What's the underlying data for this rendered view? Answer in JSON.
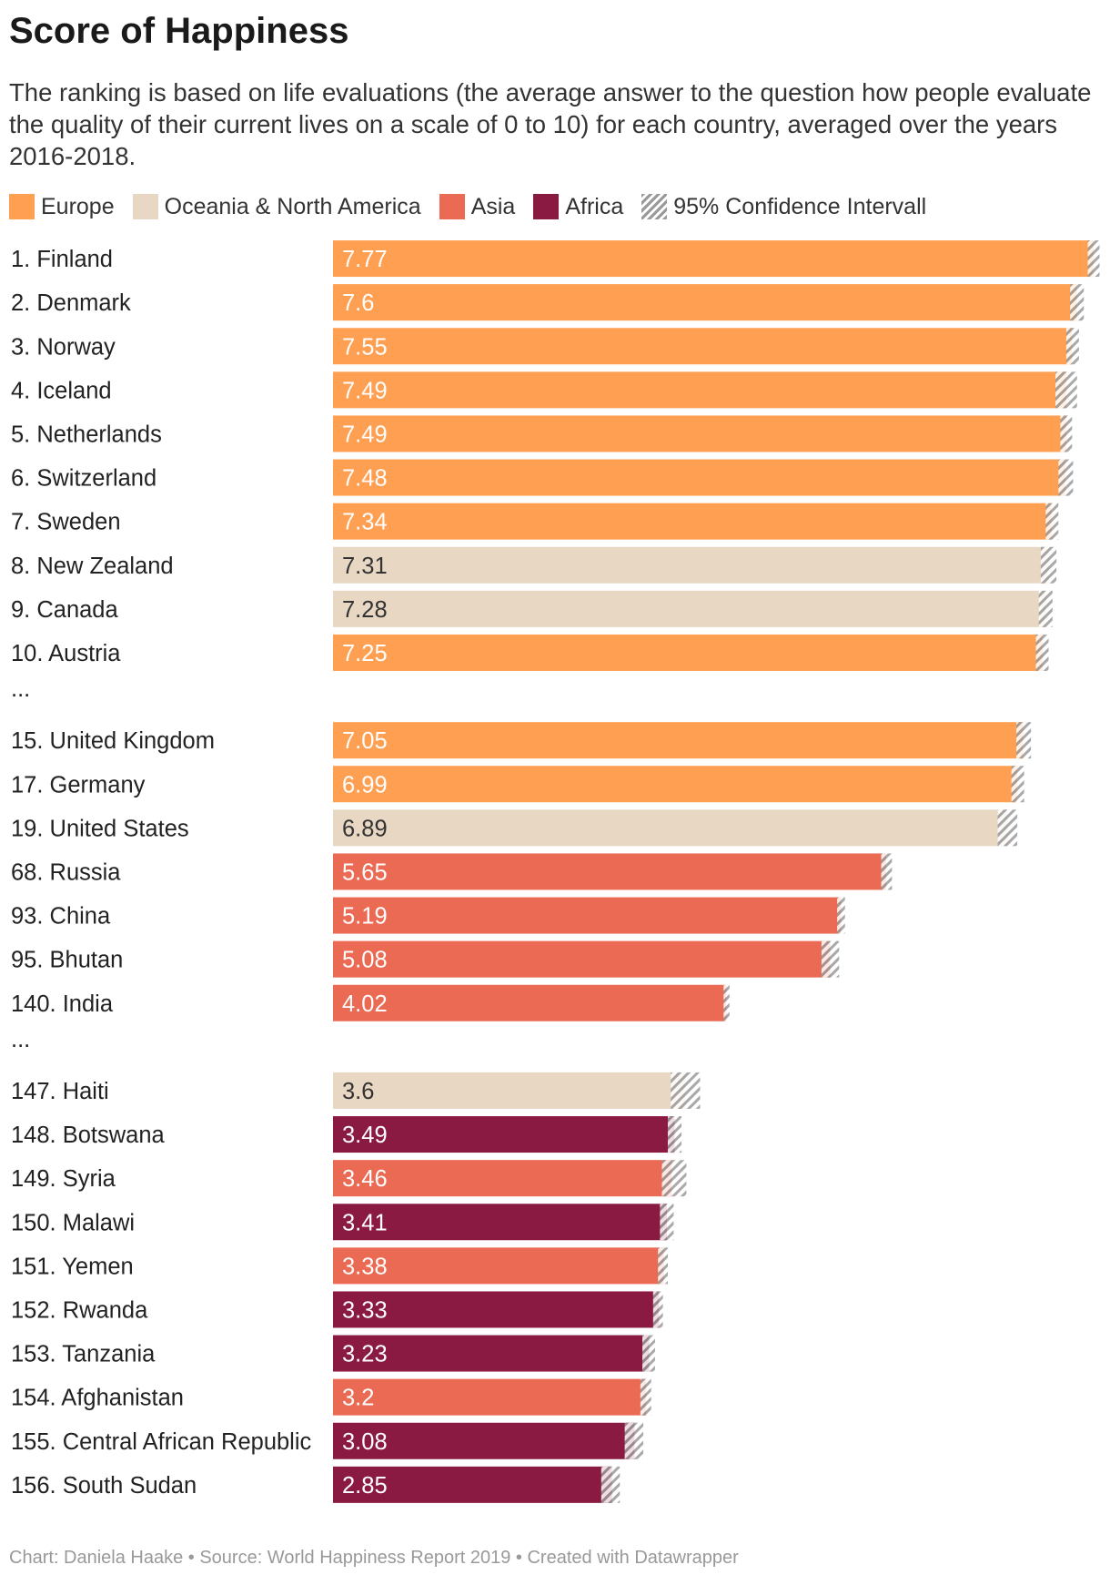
{
  "title": "Score of Happiness",
  "subtitle": "The ranking is based on life evaluations (the average answer to the question how people evaluate the quality of their current lives on a scale of 0 to 10) for each country, averaged over the years 2016-2018.",
  "legend": [
    {
      "name": "Europe",
      "color": "#fe9f51"
    },
    {
      "name": "Oceania & North America",
      "color": "#e8d7c2"
    },
    {
      "name": "Asia",
      "color": "#ea6a53"
    },
    {
      "name": "Africa",
      "color": "#8b1a43"
    },
    {
      "name": "95% Confidence Intervall",
      "pattern": "hatch"
    }
  ],
  "footer": "Chart: Daniela Haake • Source: World Happiness Report 2019 • Created with Datawrapper",
  "chart_data": {
    "type": "bar",
    "orientation": "horizontal",
    "title": "Score of Happiness",
    "xlim": [
      0,
      7.9
    ],
    "series_colors": {
      "Europe": "#fe9f51",
      "Oceania & North America": "#e8d7c2",
      "Asia": "#ea6a53",
      "Africa": "#8b1a43"
    },
    "rows": [
      {
        "label": "1. Finland",
        "value": 7.77,
        "region": "Europe",
        "ci": [
          7.71,
          7.83
        ]
      },
      {
        "label": "2. Denmark",
        "value": 7.6,
        "region": "Europe",
        "ci": [
          7.53,
          7.67
        ]
      },
      {
        "label": "3. Norway",
        "value": 7.55,
        "region": "Europe",
        "ci": [
          7.49,
          7.62
        ]
      },
      {
        "label": "4. Iceland",
        "value": 7.49,
        "region": "Europe",
        "ci": [
          7.38,
          7.6
        ]
      },
      {
        "label": "5. Netherlands",
        "value": 7.49,
        "region": "Europe",
        "ci": [
          7.43,
          7.55
        ]
      },
      {
        "label": "6. Switzerland",
        "value": 7.48,
        "region": "Europe",
        "ci": [
          7.41,
          7.56
        ]
      },
      {
        "label": "7. Sweden",
        "value": 7.34,
        "region": "Europe",
        "ci": [
          7.28,
          7.41
        ]
      },
      {
        "label": "8. New Zealand",
        "value": 7.31,
        "region": "Oceania & North America",
        "ci": [
          7.23,
          7.39
        ]
      },
      {
        "label": "9. Canada",
        "value": 7.28,
        "region": "Oceania & North America",
        "ci": [
          7.21,
          7.35
        ]
      },
      {
        "label": "10. Austria",
        "value": 7.25,
        "region": "Europe",
        "ci": [
          7.18,
          7.31
        ]
      },
      {
        "label": "...",
        "gap": true
      },
      {
        "label": "15. United Kingdom",
        "value": 7.05,
        "region": "Europe",
        "ci": [
          6.98,
          7.13
        ]
      },
      {
        "label": "17. Germany",
        "value": 6.99,
        "region": "Europe",
        "ci": [
          6.93,
          7.06
        ]
      },
      {
        "label": "19. United States",
        "value": 6.89,
        "region": "Oceania & North America",
        "ci": [
          6.79,
          6.99
        ]
      },
      {
        "label": "68. Russia",
        "value": 5.65,
        "region": "Asia",
        "ci": [
          5.6,
          5.71
        ]
      },
      {
        "label": "93. China",
        "value": 5.19,
        "region": "Asia",
        "ci": [
          5.15,
          5.23
        ]
      },
      {
        "label": "95. Bhutan",
        "value": 5.08,
        "region": "Asia",
        "ci": [
          4.99,
          5.17
        ]
      },
      {
        "label": "140. India",
        "value": 4.02,
        "region": "Asia",
        "ci": [
          3.99,
          4.05
        ]
      },
      {
        "label": "...",
        "gap": true
      },
      {
        "label": "147. Haiti",
        "value": 3.6,
        "region": "Oceania & North America",
        "ci": [
          3.45,
          3.75
        ]
      },
      {
        "label": "148. Botswana",
        "value": 3.49,
        "region": "Africa",
        "ci": [
          3.42,
          3.56
        ]
      },
      {
        "label": "149. Syria",
        "value": 3.46,
        "region": "Asia",
        "ci": [
          3.36,
          3.61
        ]
      },
      {
        "label": "150. Malawi",
        "value": 3.41,
        "region": "Africa",
        "ci": [
          3.34,
          3.48
        ]
      },
      {
        "label": "151. Yemen",
        "value": 3.38,
        "region": "Asia",
        "ci": [
          3.32,
          3.42
        ]
      },
      {
        "label": "152. Rwanda",
        "value": 3.33,
        "region": "Africa",
        "ci": [
          3.27,
          3.37
        ]
      },
      {
        "label": "153. Tanzania",
        "value": 3.23,
        "region": "Africa",
        "ci": [
          3.16,
          3.29
        ]
      },
      {
        "label": "154. Afghanistan",
        "value": 3.2,
        "region": "Asia",
        "ci": [
          3.14,
          3.25
        ]
      },
      {
        "label": "155. Central African Republic",
        "value": 3.08,
        "region": "Africa",
        "ci": [
          2.98,
          3.17
        ]
      },
      {
        "label": "156. South Sudan",
        "value": 2.85,
        "region": "Africa",
        "ci": [
          2.74,
          2.93
        ]
      }
    ]
  }
}
